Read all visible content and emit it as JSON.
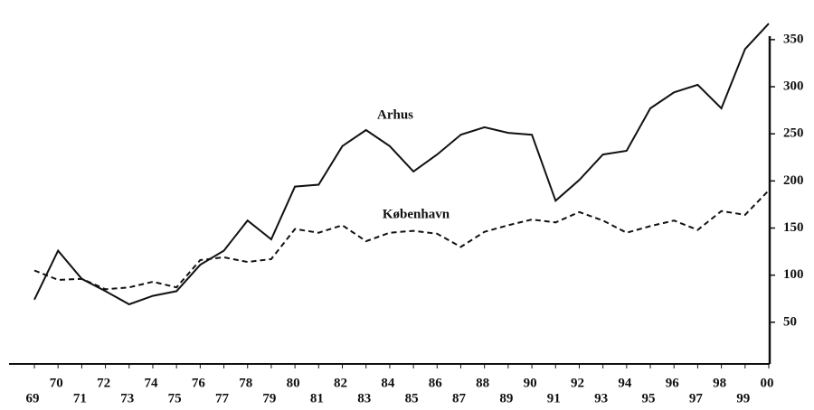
{
  "chart_data": {
    "type": "line",
    "categories": [
      "69",
      "70",
      "71",
      "72",
      "73",
      "74",
      "75",
      "76",
      "77",
      "78",
      "79",
      "80",
      "81",
      "82",
      "83",
      "84",
      "85",
      "86",
      "87",
      "88",
      "89",
      "90",
      "91",
      "92",
      "93",
      "94",
      "95",
      "96",
      "97",
      "98",
      "99",
      "00"
    ],
    "series": [
      {
        "name": "Arhus",
        "color": "#111111",
        "dash": "none",
        "values": [
          74,
          126,
          96,
          83,
          69,
          78,
          83,
          111,
          126,
          158,
          138,
          194,
          196,
          237,
          254,
          237,
          210,
          228,
          249,
          257,
          251,
          249,
          179,
          201,
          228,
          232,
          277,
          294,
          302,
          277,
          340,
          367
        ]
      },
      {
        "name": "København",
        "color": "#111111",
        "dash": "6,4",
        "values": [
          105,
          95,
          96,
          85,
          87,
          93,
          87,
          116,
          119,
          114,
          117,
          149,
          145,
          153,
          136,
          145,
          147,
          144,
          130,
          146,
          153,
          159,
          156,
          167,
          158,
          145,
          152,
          158,
          148,
          168,
          164,
          190
        ]
      }
    ],
    "ylim": [
      0,
      370
    ],
    "yticks": [
      50,
      100,
      150,
      200,
      250,
      300,
      350
    ],
    "grid": false
  }
}
